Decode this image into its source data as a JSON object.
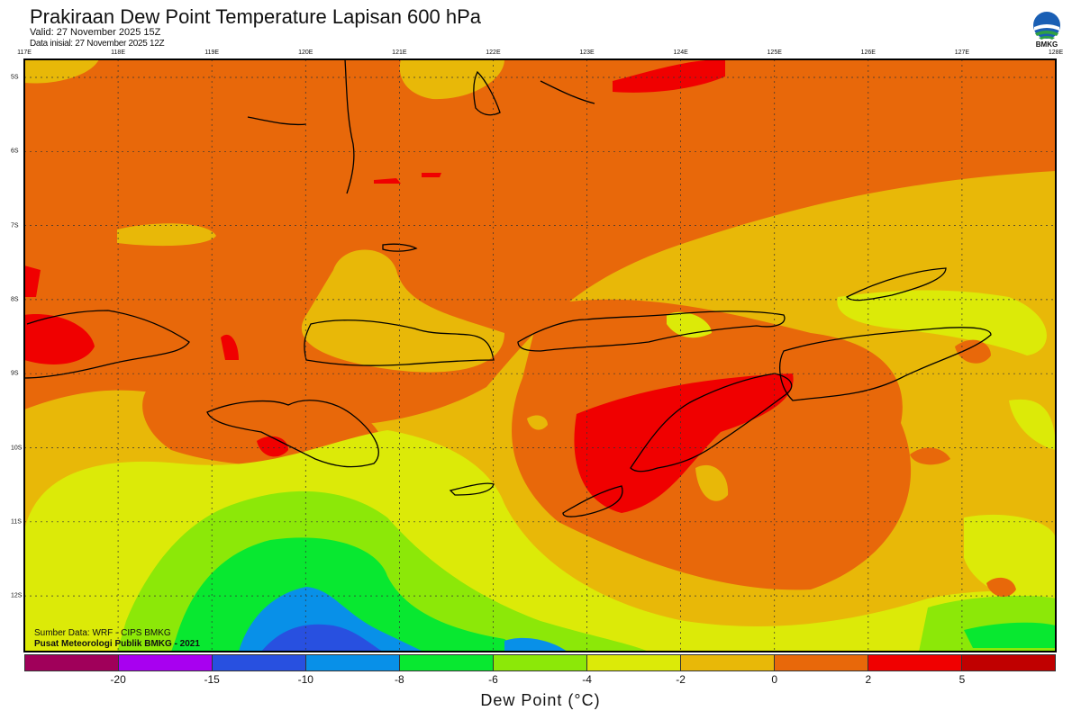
{
  "header": {
    "title": "Prakiraan Dew Point Temperature Lapisan 600 hPa",
    "valid": "Valid: 27 November 2025 15Z",
    "initial": "Data inisial: 27 November 2025 12Z",
    "logo_text": "BMKG"
  },
  "map": {
    "lon_labels": [
      "117E",
      "118E",
      "119E",
      "120E",
      "121E",
      "122E",
      "123E",
      "124E",
      "125E",
      "126E",
      "127E",
      "128E"
    ],
    "lat_labels": [
      "5S",
      "6S",
      "7S",
      "8S",
      "9S",
      "10S",
      "11S",
      "12S"
    ],
    "source": "Sumber Data: WRF - CIPS BMKG",
    "center": "Pusat Meteorologi Publik BMKG - 2021"
  },
  "legend": {
    "colors": [
      "#a0005a",
      "#a800f0",
      "#2850e0",
      "#0890e8",
      "#08e830",
      "#8ce808",
      "#dcea08",
      "#e8b808",
      "#e8680a",
      "#f00000",
      "#c00000"
    ],
    "ticks": [
      "-20",
      "-15",
      "-10",
      "-8",
      "-6",
      "-4",
      "-2",
      "0",
      "2",
      "5"
    ],
    "label": "Dew Point (°C)"
  }
}
